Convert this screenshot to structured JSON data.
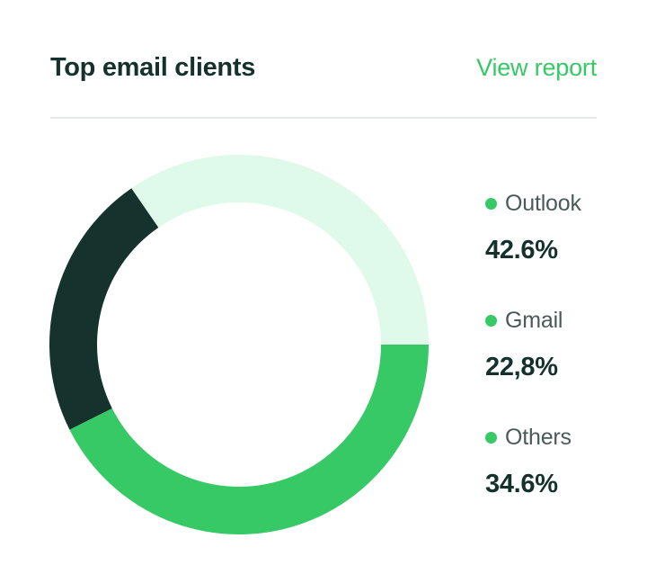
{
  "card": {
    "title": "Top email clients",
    "link_label": "View report"
  },
  "colors": {
    "accent_green": "#36c966",
    "dark_green": "#15322d",
    "light_green": "#dff9ea",
    "legend_dot": "#36c966"
  },
  "chart_data": {
    "type": "pie",
    "variant": "donut",
    "title": "Top email clients",
    "legend_placement": "right",
    "slices": [
      {
        "label": "Outlook",
        "value_label": "42.6%",
        "value": 42.6,
        "color": "#36c966"
      },
      {
        "label": "Gmail",
        "value_label": "22,8%",
        "value": 22.8,
        "color": "#15322d"
      },
      {
        "label": "Others",
        "value_label": "34.6%",
        "value": 34.6,
        "color": "#dff9ea"
      }
    ]
  }
}
